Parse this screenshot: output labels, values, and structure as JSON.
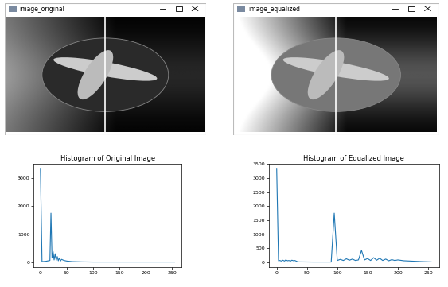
{
  "windows": [
    {
      "title": "image_original"
    },
    {
      "title": "image_equalized"
    }
  ],
  "chart_data": [
    {
      "type": "line",
      "title": "Histogram of Original Image",
      "color": "#1f77b4",
      "grid": false,
      "x": [
        0,
        3,
        10,
        18,
        20,
        22,
        24,
        26,
        28,
        30,
        32,
        34,
        36,
        38,
        40,
        45,
        50,
        60,
        80,
        100,
        150,
        200,
        255
      ],
      "values": [
        3350,
        20,
        30,
        60,
        1750,
        150,
        380,
        80,
        300,
        60,
        200,
        50,
        150,
        40,
        100,
        60,
        40,
        20,
        10,
        5,
        5,
        5,
        5
      ],
      "xlim": [
        -13,
        268
      ],
      "xticks": [
        0,
        50,
        100,
        150,
        200,
        250
      ],
      "ylim": [
        -170,
        3520
      ],
      "yticks": [
        0,
        1000,
        2000,
        3000
      ]
    },
    {
      "type": "line",
      "title": "Histogram of Equalized Image",
      "color": "#1f77b4",
      "grid": false,
      "x": [
        0,
        3,
        5,
        8,
        10,
        13,
        15,
        18,
        20,
        23,
        25,
        28,
        30,
        35,
        60,
        90,
        95,
        100,
        105,
        110,
        115,
        120,
        125,
        130,
        135,
        140,
        145,
        150,
        155,
        160,
        165,
        170,
        175,
        180,
        185,
        190,
        195,
        200,
        210,
        220,
        230,
        240,
        255
      ],
      "values": [
        3350,
        50,
        60,
        40,
        70,
        40,
        80,
        50,
        60,
        40,
        70,
        50,
        60,
        10,
        5,
        5,
        1750,
        60,
        100,
        60,
        120,
        70,
        110,
        60,
        80,
        420,
        80,
        130,
        60,
        160,
        70,
        140,
        60,
        110,
        50,
        90,
        60,
        80,
        50,
        40,
        30,
        20,
        10
      ],
      "xlim": [
        -13,
        268
      ],
      "xticks": [
        0,
        50,
        100,
        150,
        200,
        250
      ],
      "ylim": [
        -170,
        3520
      ],
      "yticks": [
        0,
        500,
        1000,
        1500,
        2000,
        2500,
        3000,
        3500
      ]
    }
  ]
}
